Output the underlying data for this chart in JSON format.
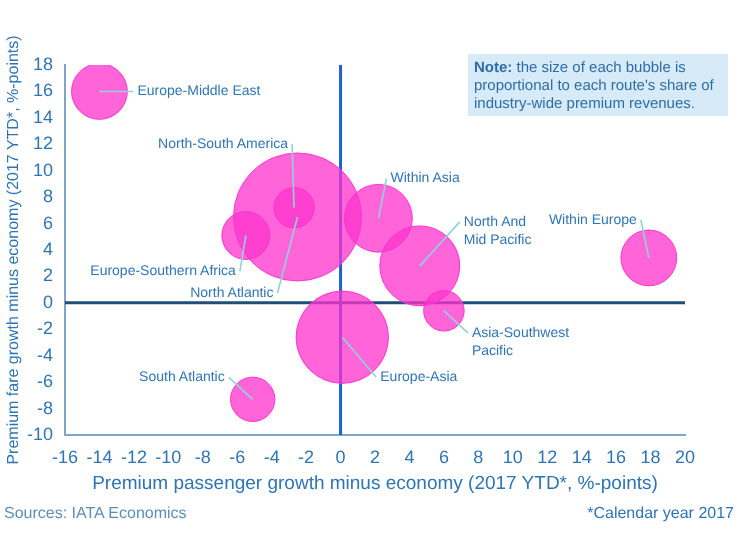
{
  "chart_data": {
    "type": "bubble",
    "xlabel": "Premium passenger growth minus economy (2017 YTD*, %-points)",
    "ylabel": "Premium fare growth minus economy (2017 YTD*, %-points)",
    "series": [
      {
        "color": "#ff33cc",
        "x": [
          -14.0,
          -2.5,
          -2.7,
          -5.5,
          2.2,
          4.6,
          17.9,
          6.0,
          0.1,
          -5.1
        ],
        "values": [
          16.0,
          6.5,
          7.2,
          5.1,
          6.4,
          2.8,
          3.4,
          -0.6,
          -2.6,
          -7.3
        ],
        "sizes": [
          0.19,
          1,
          0.1,
          0.14,
          0.28,
          0.39,
          0.19,
          0.1,
          0.52,
          0.12
        ]
      }
    ],
    "xlim": [
      -16,
      20
    ],
    "xticks": [
      -16,
      -14,
      -12,
      -10,
      -8,
      -6,
      -4,
      -2,
      0,
      2,
      4,
      6,
      8,
      10,
      12,
      14,
      16,
      18,
      20
    ],
    "ylim": [
      -10,
      18
    ],
    "yticks": [
      -10,
      -8,
      -6,
      -4,
      -2,
      0,
      2,
      4,
      6,
      8,
      10,
      12,
      14,
      16,
      18
    ],
    "grid": false,
    "legend": false,
    "ref_lines": [
      {
        "axis": "x",
        "value": 0,
        "color": "#1f5fd6"
      },
      {
        "axis": "y",
        "value": 0,
        "color": "#1f4e79"
      }
    ],
    "annotations": [
      {
        "text": "Europe-Middle East",
        "x": -14.0,
        "y": 16.0
      },
      {
        "text": "North Atlantic",
        "x": -2.5,
        "y": 6.5
      },
      {
        "text": "North-South America",
        "x": -2.7,
        "y": 7.2
      },
      {
        "text": "Europe-Southern Africa",
        "x": -5.5,
        "y": 5.1
      },
      {
        "text": "Within Asia",
        "x": 2.2,
        "y": 6.4
      },
      {
        "text": "North And Mid Pacific",
        "x": 4.6,
        "y": 2.8
      },
      {
        "text": "Within Europe",
        "x": 17.9,
        "y": 3.4
      },
      {
        "text": "Asia-Southwest Pacific",
        "x": 6.0,
        "y": -0.6
      },
      {
        "text": "Europe-Asia",
        "x": 0.1,
        "y": -2.6
      },
      {
        "text": "South Atlantic",
        "x": -5.1,
        "y": -7.3
      },
      "Note: the size of each bubble is proportional to each route's share of industry-wide premium revenues.",
      "Sources: IATA Economics",
      "*Calendar year 2017"
    ]
  }
}
